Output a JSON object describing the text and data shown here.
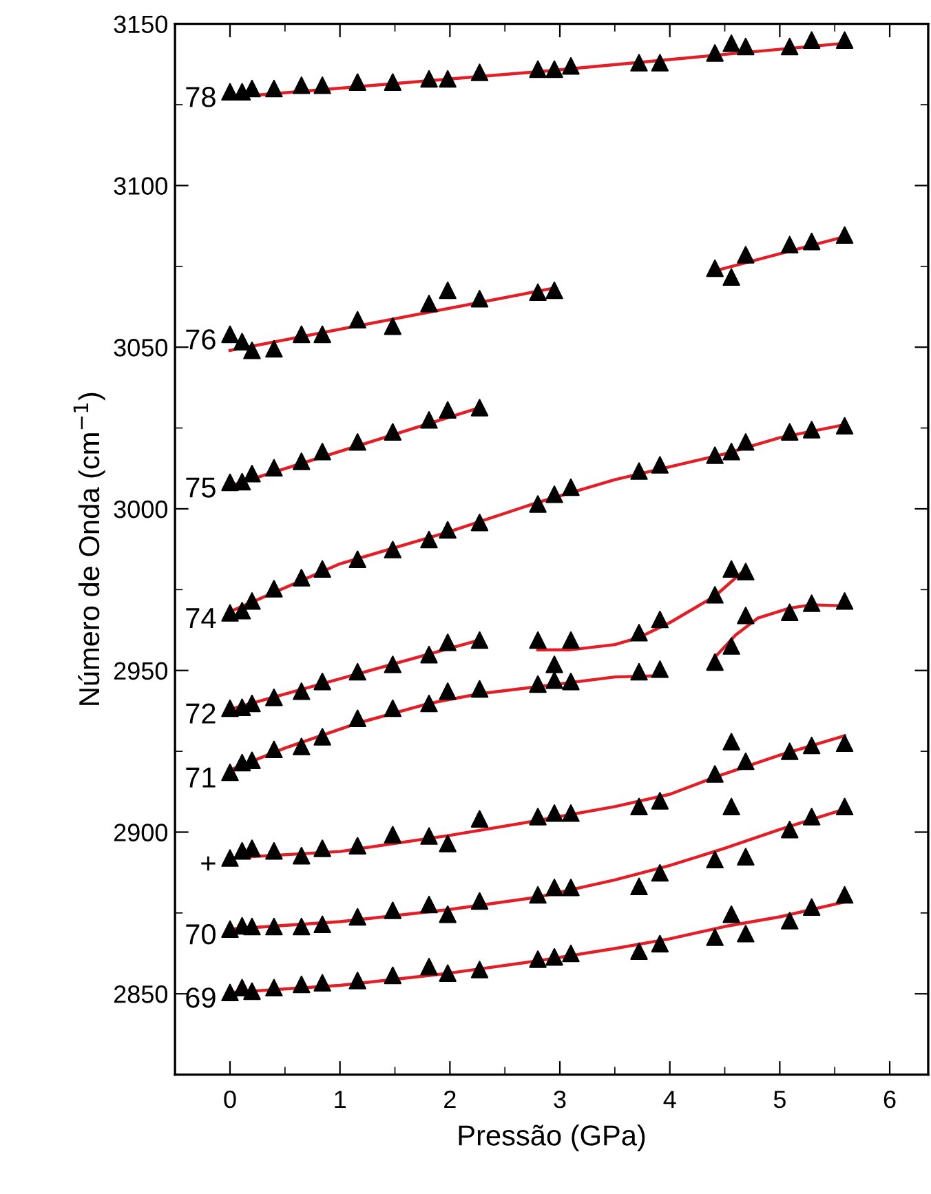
{
  "chart_data": {
    "type": "scatter",
    "xlabel": "Pressão (GPa)",
    "ylabel": "Número de Onda (cm$^{−1}$)",
    "xlim": [
      -0.5,
      6.35
    ],
    "ylim": [
      2825,
      3150
    ],
    "xticks": [
      0,
      1,
      2,
      3,
      4,
      5,
      6
    ],
    "yticks": [
      2850,
      2900,
      2950,
      3000,
      3050,
      3100,
      3150
    ],
    "grid": false,
    "legend": false,
    "series": [
      {
        "type": "line",
        "color": "#e41e26",
        "x": [
          0,
          2.8,
          5.59
        ],
        "values": [
          3127.3,
          3135.2,
          3144
        ]
      },
      {
        "type": "line",
        "color": "#e41e26",
        "x": [
          0,
          2.95
        ],
        "values": [
          3049,
          3068.3
        ]
      },
      {
        "type": "line",
        "color": "#e41e26",
        "x": [
          4.41,
          5.59
        ],
        "values": [
          3073.6,
          3084.2
        ]
      },
      {
        "type": "line",
        "color": "#e41e26",
        "x": [
          0,
          2.27
        ],
        "values": [
          3007.1,
          3031.3
        ]
      },
      {
        "type": "line",
        "color": "#e41e26",
        "x": [
          0,
          1,
          2,
          2.8,
          3.5,
          4,
          4.5,
          5,
          5.59
        ],
        "values": [
          2968.2,
          2983,
          2993,
          3002,
          3009,
          3013,
          3017,
          3022,
          3026
        ]
      },
      {
        "type": "line",
        "color": "#e41e26",
        "x": [
          0,
          2.27
        ],
        "values": [
          2938,
          2959.4
        ]
      },
      {
        "type": "line",
        "color": "#e41e26",
        "x": [
          2.8,
          3.1,
          3.5,
          3.72,
          4,
          4.41,
          4.69
        ],
        "values": [
          2956.4,
          2956.4,
          2958,
          2960.2,
          2964.8,
          2973,
          2981.4
        ]
      },
      {
        "type": "line",
        "color": "#e41e26",
        "x": [
          4.41,
          4.6,
          4.8,
          5.09,
          5.29,
          5.59
        ],
        "values": [
          2954.1,
          2961,
          2966.2,
          2969.3,
          2970.3,
          2970
        ]
      },
      {
        "type": "line",
        "color": "#e41e26",
        "x": [
          0,
          0.5,
          1.16,
          1.81,
          2.27,
          2.8,
          3.5,
          3.91
        ],
        "values": [
          2919.2,
          2926,
          2933.7,
          2939.8,
          2942.8,
          2945,
          2948,
          2948.4
        ]
      },
      {
        "type": "line",
        "color": "#e41e26",
        "x": [
          0,
          1,
          2,
          2.8,
          3.5,
          4,
          4.41,
          5,
          5.59
        ],
        "values": [
          2892,
          2894,
          2899,
          2903.6,
          2907.9,
          2911.7,
          2917,
          2923.8,
          2929.8
        ]
      },
      {
        "type": "line",
        "color": "#e41e26",
        "x": [
          0,
          1,
          2,
          2.8,
          3.5,
          4,
          4.5,
          5,
          5.59
        ],
        "values": [
          2870,
          2872.3,
          2876.1,
          2879.9,
          2885.2,
          2889.7,
          2895,
          2900.8,
          2907.1
        ]
      },
      {
        "type": "line",
        "color": "#e41e26",
        "x": [
          0,
          1,
          2,
          2.8,
          3.5,
          4,
          4.5,
          5,
          5.59
        ],
        "values": [
          2850.4,
          2852.6,
          2856.4,
          2860.2,
          2864,
          2867,
          2870.8,
          2873.8,
          2878.4
        ]
      },
      {
        "name": "78",
        "marker": "triangle",
        "color": "#000000",
        "x": [
          0,
          0.11,
          0.2,
          0.4,
          0.65,
          0.84,
          1.16,
          1.48,
          1.81,
          1.98,
          2.27,
          2.8,
          2.95,
          3.1,
          3.72,
          3.91,
          4.41,
          4.56,
          4.69,
          5.09,
          5.29,
          5.59
        ],
        "values": [
          3129,
          3129,
          3130,
          3130,
          3131,
          3131,
          3132,
          3132,
          3133,
          3133,
          3135,
          3136,
          3136,
          3137,
          3138,
          3138,
          3141,
          3144,
          3143,
          3143,
          3145,
          3145
        ]
      },
      {
        "name": "76",
        "marker": "triangle",
        "color": "#000000",
        "x": [
          0,
          0.11,
          0.2,
          0.4,
          0.65,
          0.84,
          1.16,
          1.48,
          1.81,
          1.98,
          2.27,
          2.8,
          2.95,
          4.41,
          4.56,
          4.69,
          5.09,
          5.29,
          5.59
        ],
        "values": [
          3054,
          3051.7,
          3049,
          3049.5,
          3054,
          3054,
          3058.5,
          3056.5,
          3063.5,
          3067.6,
          3065,
          3067,
          3067.6,
          3074.4,
          3071.7,
          3078.6,
          3081.7,
          3082.7,
          3084.7
        ]
      },
      {
        "name": "75",
        "marker": "triangle",
        "color": "#000000",
        "x": [
          0,
          0.11,
          0.2,
          0.4,
          0.65,
          0.84,
          1.16,
          1.48,
          1.81,
          1.98,
          2.27
        ],
        "values": [
          3008.2,
          3008.4,
          3010.9,
          3012.7,
          3014.7,
          3017.7,
          3020.7,
          3023.8,
          3027.5,
          3030.6,
          3031.3
        ]
      },
      {
        "name": "74",
        "marker": "triangle",
        "color": "#000000",
        "x": [
          0,
          0.11,
          0.2,
          0.4,
          0.65,
          0.84,
          1.16,
          1.48,
          1.81,
          1.98,
          2.27,
          2.8,
          2.95,
          3.1,
          3.72,
          3.91,
          4.41,
          4.56,
          4.69,
          5.09,
          5.29,
          5.59
        ],
        "values": [
          2967.8,
          2968.5,
          2971.5,
          2975.3,
          2978.7,
          2981.4,
          2984.4,
          2987.4,
          2990.5,
          2993.5,
          2995.8,
          3001.5,
          3004.5,
          3006.7,
          3011.7,
          3013.6,
          3016.6,
          3017.7,
          3020.7,
          3023.8,
          3024.5,
          3025.7
        ]
      },
      {
        "name": "72",
        "marker": "triangle",
        "color": "#000000",
        "x": [
          0,
          0.11,
          0.2,
          0.4,
          0.65,
          0.84,
          1.16,
          1.48,
          1.81,
          1.98,
          2.27
        ],
        "values": [
          2938.3,
          2938.6,
          2939.8,
          2941.7,
          2943.6,
          2946.6,
          2949.6,
          2951.9,
          2954.9,
          2958.7,
          2959.4
        ]
      },
      {
        "marker": "triangle",
        "color": "#000000",
        "x": [
          2.8,
          3.1,
          3.72,
          3.91,
          4.41,
          4.56,
          4.69
        ],
        "values": [
          2959.4,
          2959.4,
          2961.7,
          2965.8,
          2973.4,
          2981.4,
          2980.6
        ]
      },
      {
        "marker": "triangle",
        "color": "#000000",
        "x": [
          4.41,
          4.56,
          4.69,
          5.09,
          5.29,
          5.59
        ],
        "values": [
          2952.6,
          2957.6,
          2967,
          2968,
          2970.8,
          2971.5
        ]
      },
      {
        "name": "71",
        "marker": "triangle",
        "color": "#000000",
        "x": [
          0,
          0.11,
          0.2,
          0.4,
          0.65,
          0.84,
          1.16,
          1.48,
          1.81,
          1.98,
          2.27,
          2.8,
          2.95,
          2.95,
          3.1,
          3.72,
          3.91
        ],
        "values": [
          2918.5,
          2921.5,
          2922.2,
          2925.6,
          2926.5,
          2929.5,
          2935.2,
          2938.3,
          2939.8,
          2943.6,
          2944.3,
          2945.8,
          2951.9,
          2947,
          2946.6,
          2949.6,
          2950.4
        ]
      },
      {
        "name": "+",
        "marker": "triangle",
        "color": "#000000",
        "x": [
          0,
          0.11,
          0.2,
          0.4,
          0.65,
          0.84,
          1.16,
          1.48,
          1.81,
          1.98,
          2.27,
          2.8,
          2.95,
          3.1,
          3.72,
          3.91,
          4.41,
          4.56,
          4.56,
          4.69,
          5.09,
          5.29,
          5.59
        ],
        "values": [
          2892,
          2894.2,
          2895,
          2894.2,
          2892.7,
          2895,
          2895.8,
          2899.2,
          2898.8,
          2896.5,
          2904.1,
          2904.8,
          2905.9,
          2905.9,
          2907.9,
          2909.7,
          2918,
          2928,
          2907.9,
          2921.9,
          2925,
          2926.8,
          2927.5
        ]
      },
      {
        "name": "70",
        "marker": "triangle",
        "color": "#000000",
        "x": [
          0,
          0.11,
          0.2,
          0.4,
          0.65,
          0.84,
          1.16,
          1.48,
          1.81,
          1.98,
          2.27,
          2.8,
          2.95,
          3.1,
          3.72,
          3.91,
          4.41,
          4.69,
          5.09,
          5.29,
          5.59
        ],
        "values": [
          2870,
          2871,
          2870.8,
          2870.8,
          2870.8,
          2871.5,
          2873.8,
          2875.8,
          2877.6,
          2874.6,
          2878.7,
          2880.6,
          2882.9,
          2882.9,
          2883.2,
          2887.4,
          2891.5,
          2892.4,
          2900.8,
          2904.8,
          2907.9
        ]
      },
      {
        "name": "69",
        "marker": "triangle",
        "color": "#000000",
        "x": [
          0,
          0.11,
          0.2,
          0.4,
          0.65,
          0.84,
          1.16,
          1.48,
          1.81,
          1.98,
          2.27,
          2.8,
          2.95,
          3.1,
          3.72,
          3.91,
          4.41,
          4.56,
          4.69,
          5.09,
          5.29,
          5.59
        ],
        "values": [
          2850.4,
          2851.9,
          2850.8,
          2851.9,
          2852.9,
          2853.4,
          2854.1,
          2855.7,
          2858.4,
          2856.4,
          2857.5,
          2860.7,
          2861.4,
          2862.5,
          2863.2,
          2865.5,
          2867.5,
          2874.6,
          2868.6,
          2872.6,
          2876.8,
          2880.6
        ]
      }
    ]
  }
}
